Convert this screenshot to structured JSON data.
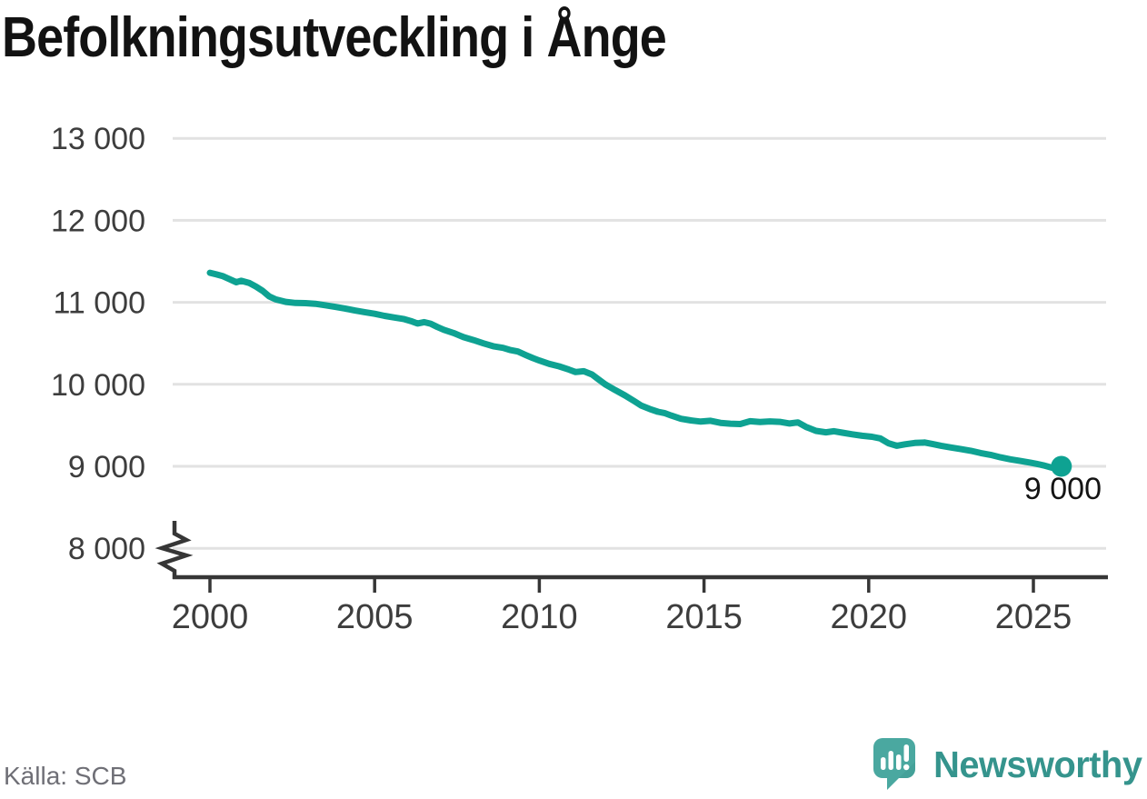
{
  "title": "Befolkningsutveckling i Ånge",
  "source": "Källa: SCB",
  "branding": {
    "name": "Newsworthy",
    "logo_icon": "newsworthy-speech-bubble-barchart-icon"
  },
  "colors": {
    "line": "#0ea292",
    "dot": "#0ea292",
    "grid": "#e2e2e2",
    "axis": "#363636",
    "tick_text": "#3d3d3d",
    "title_text": "#121212",
    "end_label_text": "#141414",
    "source_text": "#6f6f76",
    "brand_bubble": "#4aa8a0",
    "brand_bubble_shade": "#3f9a93",
    "brand_text": "#35948d"
  },
  "chart_data": {
    "type": "line",
    "title": "Befolkningsutveckling i Ånge",
    "xlabel": "",
    "ylabel": "",
    "grid": "horizontal",
    "axis_break": true,
    "x_ticks": [
      2000,
      2005,
      2010,
      2015,
      2020,
      2025
    ],
    "y_ticks": [
      {
        "value": 13000,
        "label": "13 000"
      },
      {
        "value": 12000,
        "label": "12 000"
      },
      {
        "value": 11000,
        "label": "11 000"
      },
      {
        "value": 10000,
        "label": "10 000"
      },
      {
        "value": 9000,
        "label": "9 000"
      },
      {
        "value": 8000,
        "label": "8 000"
      }
    ],
    "xlim": [
      1998.9,
      2027.2
    ],
    "ylim_displayed": [
      8000,
      13000
    ],
    "end_point": {
      "x": 2025.85,
      "value": 9000,
      "label": "9 000"
    },
    "series": [
      {
        "name": "Befolkning",
        "points": [
          [
            2000.0,
            11360
          ],
          [
            2000.2,
            11340
          ],
          [
            2000.4,
            11318
          ],
          [
            2000.6,
            11282
          ],
          [
            2000.8,
            11245
          ],
          [
            2000.95,
            11263
          ],
          [
            2001.2,
            11235
          ],
          [
            2001.4,
            11192
          ],
          [
            2001.6,
            11140
          ],
          [
            2001.8,
            11072
          ],
          [
            2002.0,
            11035
          ],
          [
            2002.3,
            11005
          ],
          [
            2002.6,
            10992
          ],
          [
            2002.9,
            10990
          ],
          [
            2003.2,
            10982
          ],
          [
            2003.5,
            10965
          ],
          [
            2003.8,
            10945
          ],
          [
            2004.1,
            10925
          ],
          [
            2004.4,
            10900
          ],
          [
            2004.7,
            10880
          ],
          [
            2005.0,
            10860
          ],
          [
            2005.3,
            10835
          ],
          [
            2005.6,
            10815
          ],
          [
            2005.9,
            10795
          ],
          [
            2006.1,
            10772
          ],
          [
            2006.3,
            10742
          ],
          [
            2006.5,
            10758
          ],
          [
            2006.7,
            10740
          ],
          [
            2006.9,
            10700
          ],
          [
            2007.1,
            10665
          ],
          [
            2007.4,
            10625
          ],
          [
            2007.7,
            10575
          ],
          [
            2008.0,
            10540
          ],
          [
            2008.3,
            10500
          ],
          [
            2008.6,
            10465
          ],
          [
            2008.9,
            10445
          ],
          [
            2009.1,
            10420
          ],
          [
            2009.35,
            10400
          ],
          [
            2009.6,
            10355
          ],
          [
            2009.8,
            10320
          ],
          [
            2010.0,
            10290
          ],
          [
            2010.3,
            10250
          ],
          [
            2010.6,
            10220
          ],
          [
            2010.9,
            10180
          ],
          [
            2011.1,
            10150
          ],
          [
            2011.35,
            10160
          ],
          [
            2011.6,
            10120
          ],
          [
            2011.8,
            10060
          ],
          [
            2012.0,
            10000
          ],
          [
            2012.3,
            9930
          ],
          [
            2012.6,
            9865
          ],
          [
            2012.9,
            9790
          ],
          [
            2013.1,
            9740
          ],
          [
            2013.35,
            9700
          ],
          [
            2013.6,
            9665
          ],
          [
            2013.8,
            9650
          ],
          [
            2014.0,
            9620
          ],
          [
            2014.3,
            9580
          ],
          [
            2014.6,
            9560
          ],
          [
            2014.9,
            9545
          ],
          [
            2015.2,
            9555
          ],
          [
            2015.5,
            9530
          ],
          [
            2015.8,
            9520
          ],
          [
            2016.1,
            9515
          ],
          [
            2016.4,
            9550
          ],
          [
            2016.7,
            9540
          ],
          [
            2017.0,
            9548
          ],
          [
            2017.3,
            9542
          ],
          [
            2017.6,
            9522
          ],
          [
            2017.85,
            9535
          ],
          [
            2018.1,
            9480
          ],
          [
            2018.4,
            9432
          ],
          [
            2018.7,
            9415
          ],
          [
            2018.95,
            9428
          ],
          [
            2019.2,
            9410
          ],
          [
            2019.5,
            9390
          ],
          [
            2019.8,
            9372
          ],
          [
            2020.1,
            9360
          ],
          [
            2020.35,
            9340
          ],
          [
            2020.6,
            9282
          ],
          [
            2020.85,
            9250
          ],
          [
            2021.1,
            9268
          ],
          [
            2021.4,
            9285
          ],
          [
            2021.7,
            9290
          ],
          [
            2021.95,
            9270
          ],
          [
            2022.2,
            9250
          ],
          [
            2022.5,
            9230
          ],
          [
            2022.8,
            9210
          ],
          [
            2023.1,
            9190
          ],
          [
            2023.4,
            9162
          ],
          [
            2023.7,
            9140
          ],
          [
            2024.0,
            9110
          ],
          [
            2024.3,
            9085
          ],
          [
            2024.6,
            9065
          ],
          [
            2024.9,
            9045
          ],
          [
            2025.1,
            9030
          ],
          [
            2025.3,
            9012
          ],
          [
            2025.5,
            8990
          ],
          [
            2025.65,
            8975
          ],
          [
            2025.85,
            9000
          ]
        ]
      }
    ]
  }
}
